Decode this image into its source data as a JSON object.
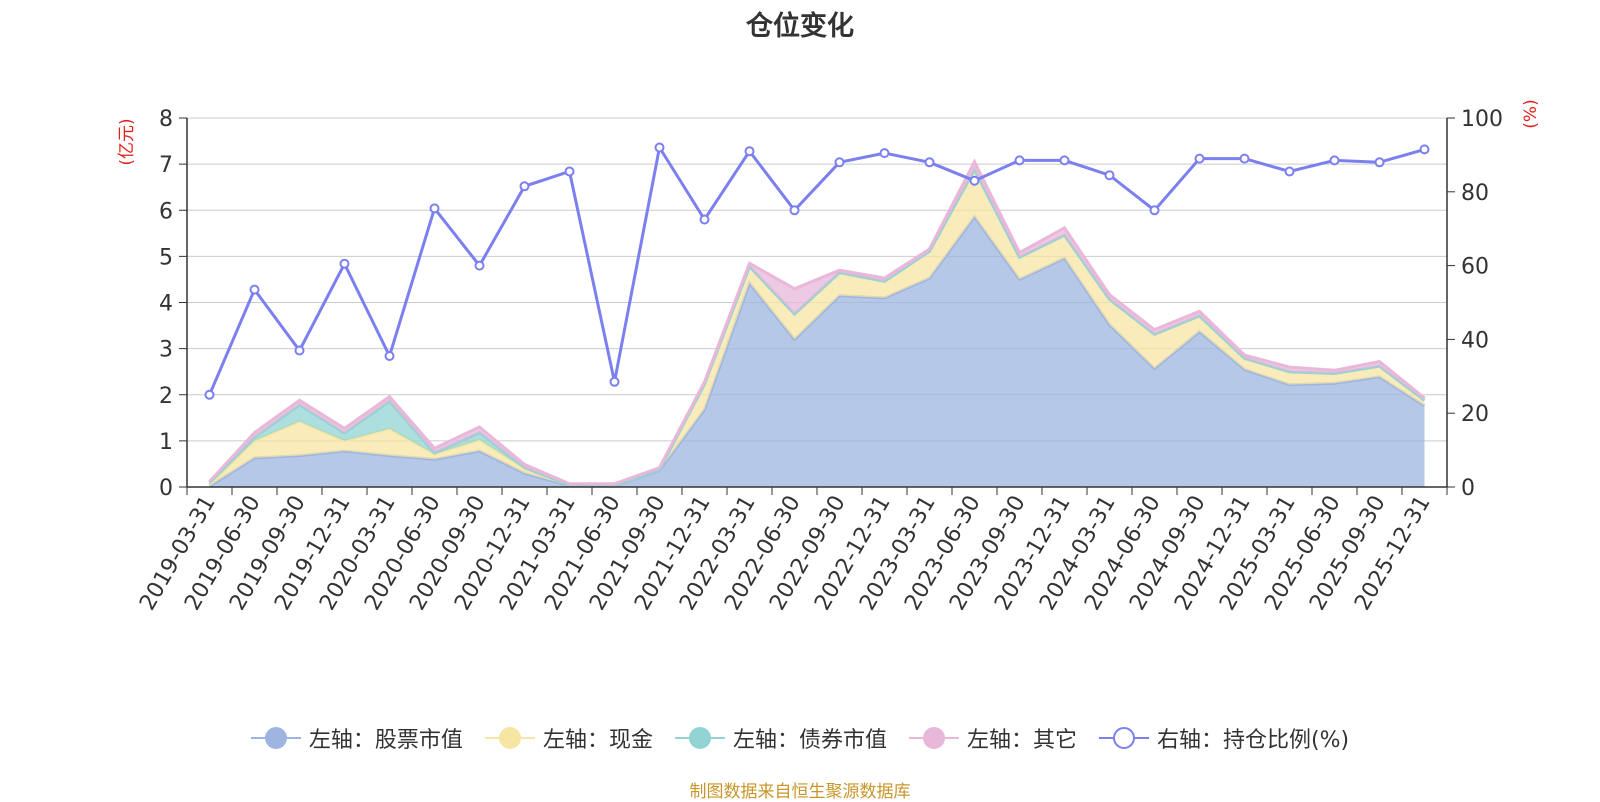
{
  "title": "仓位变化",
  "footer": "制图数据来自恒生聚源数据库",
  "colors": {
    "stock": "#9db5e0",
    "cash": "#f7e6a3",
    "bond": "#92d4d4",
    "other": "#e8b7d9",
    "ratio": "#7b7ff0",
    "axis_unit": "#e0201a"
  },
  "legend": [
    {
      "label": "左轴：股票市值",
      "key": "stock"
    },
    {
      "label": "左轴：现金",
      "key": "cash"
    },
    {
      "label": "左轴：债券市值",
      "key": "bond"
    },
    {
      "label": "左轴：其它",
      "key": "other"
    },
    {
      "label": "右轴：持仓比例(%)",
      "key": "ratio"
    }
  ],
  "chart_data": {
    "type": "area",
    "title": "仓位变化",
    "categories": [
      "2019-03-31",
      "2019-06-30",
      "2019-09-30",
      "2019-12-31",
      "2020-03-31",
      "2020-06-30",
      "2020-09-30",
      "2020-12-31",
      "2021-03-31",
      "2021-06-30",
      "2021-09-30",
      "2021-12-31",
      "2022-03-31",
      "2022-06-30",
      "2022-09-30",
      "2022-12-31",
      "2023-03-31",
      "2023-06-30",
      "2023-09-30",
      "2023-12-31",
      "2024-03-31",
      "2024-06-30",
      "2024-09-30",
      "2024-12-31",
      "2025-03-31",
      "2025-06-30",
      "2025-09-30",
      "2025-12-31"
    ],
    "left_axis": {
      "label": "(亿元)",
      "ylim": [
        0,
        8
      ],
      "ticks": [
        "0",
        "1",
        "2",
        "3",
        "4",
        "5",
        "6",
        "7",
        "8"
      ]
    },
    "right_axis": {
      "label": "(%)",
      "ylim": [
        0,
        100
      ],
      "ticks": [
        "0",
        "20",
        "40",
        "60",
        "80",
        "100"
      ]
    },
    "stacked_series": [
      {
        "name": "左轴：股票市值",
        "key": "stock",
        "values": [
          0.02,
          0.63,
          0.68,
          0.78,
          0.68,
          0.6,
          0.78,
          0.3,
          0.03,
          0.02,
          0.36,
          1.68,
          4.42,
          3.2,
          4.15,
          4.1,
          4.53,
          5.86,
          4.5,
          4.96,
          3.52,
          2.57,
          3.37,
          2.55,
          2.22,
          2.25,
          2.39,
          1.76
        ]
      },
      {
        "name": "左轴：现金",
        "key": "cash",
        "values": [
          0.03,
          0.37,
          0.74,
          0.22,
          0.58,
          0.11,
          0.24,
          0.1,
          0.01,
          0.01,
          0.02,
          0.55,
          0.36,
          0.55,
          0.5,
          0.36,
          0.58,
          1.02,
          0.48,
          0.5,
          0.55,
          0.74,
          0.34,
          0.24,
          0.28,
          0.21,
          0.23,
          0.12
        ]
      },
      {
        "name": "左轴：债券市值",
        "key": "bond",
        "values": [
          0.04,
          0.08,
          0.36,
          0.17,
          0.6,
          0.03,
          0.16,
          0.02,
          0.0,
          0.0,
          0.0,
          0.0,
          0.0,
          0.0,
          0.0,
          0.0,
          0.0,
          0.0,
          0.0,
          0.0,
          0.0,
          0.0,
          0.0,
          0.0,
          0.0,
          0.0,
          0.0,
          0.0
        ]
      },
      {
        "name": "左轴：其它",
        "key": "other",
        "values": [
          0.03,
          0.1,
          0.1,
          0.1,
          0.1,
          0.1,
          0.12,
          0.07,
          0.03,
          0.04,
          0.04,
          0.05,
          0.07,
          0.55,
          0.05,
          0.07,
          0.05,
          0.17,
          0.1,
          0.16,
          0.1,
          0.1,
          0.1,
          0.07,
          0.1,
          0.07,
          0.1,
          0.05
        ]
      }
    ],
    "line_series": {
      "name": "右轴：持仓比例(%)",
      "key": "ratio",
      "values": [
        25,
        53.5,
        37,
        60.5,
        35.5,
        75.5,
        60,
        81.5,
        85.5,
        28.5,
        92,
        72.5,
        91,
        75,
        88,
        90.5,
        88,
        83,
        88.5,
        88.5,
        84.5,
        75,
        89,
        89,
        85.5,
        88.5,
        88,
        91.5
      ]
    }
  }
}
